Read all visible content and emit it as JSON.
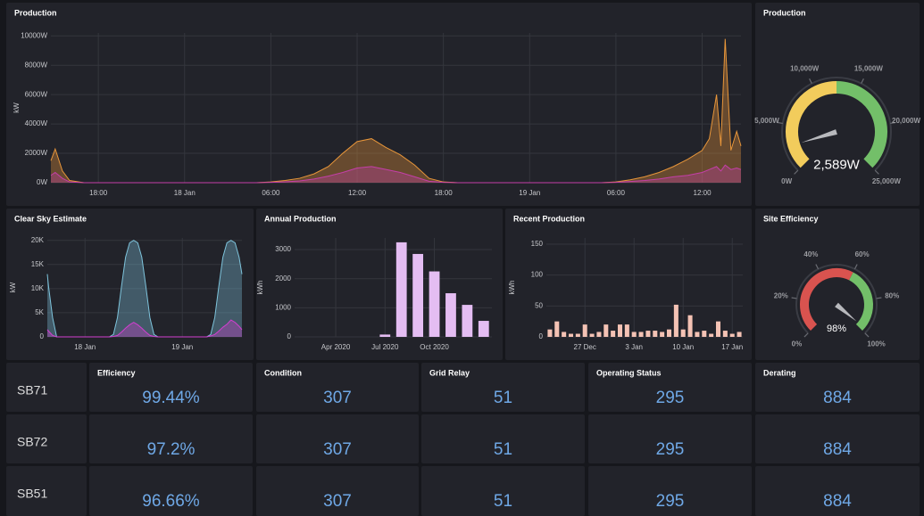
{
  "chart_data": [
    {
      "type": "line",
      "title": "Production",
      "ylabel": "kW",
      "x": [
        14.7,
        15,
        15.5,
        16,
        17,
        18,
        19,
        20,
        21,
        22,
        23,
        24,
        25,
        26,
        27,
        28,
        29,
        30,
        31,
        32,
        33,
        34,
        35,
        36,
        37,
        38,
        39,
        40,
        41,
        42,
        43,
        44,
        45,
        46,
        47,
        48,
        49,
        50,
        51,
        52,
        53,
        54,
        55,
        56,
        57,
        58,
        59,
        60,
        60.5,
        61,
        61.3,
        61.6,
        62,
        62.4,
        62.7
      ],
      "series": [
        {
          "color": "#e8963a",
          "values": [
            1500,
            2300,
            800,
            150,
            0,
            0,
            0,
            0,
            0,
            0,
            0,
            0,
            0,
            0,
            0,
            0,
            0,
            50,
            150,
            300,
            600,
            1100,
            2000,
            2800,
            3000,
            2400,
            1900,
            1200,
            300,
            50,
            0,
            0,
            0,
            0,
            0,
            0,
            0,
            0,
            0,
            0,
            0,
            50,
            200,
            400,
            700,
            1100,
            1600,
            2200,
            3000,
            6000,
            2500,
            9800,
            2200,
            3500,
            2500
          ]
        },
        {
          "color": "#c43fa8",
          "values": [
            500,
            700,
            300,
            50,
            0,
            0,
            0,
            0,
            0,
            0,
            0,
            0,
            0,
            0,
            0,
            0,
            0,
            20,
            60,
            120,
            250,
            450,
            700,
            1000,
            1100,
            900,
            700,
            400,
            100,
            20,
            0,
            0,
            0,
            0,
            0,
            0,
            0,
            0,
            0,
            0,
            0,
            20,
            80,
            150,
            250,
            400,
            500,
            700,
            900,
            1100,
            800,
            1200,
            900,
            1000,
            900
          ]
        }
      ],
      "xlim": [
        14.7,
        62.7
      ],
      "xticks": [
        {
          "value": 18,
          "label": "18:00"
        },
        {
          "value": 24,
          "label": "18 Jan"
        },
        {
          "value": 30,
          "label": "06:00"
        },
        {
          "value": 36,
          "label": "12:00"
        },
        {
          "value": 42,
          "label": "18:00"
        },
        {
          "value": 48,
          "label": "19 Jan"
        },
        {
          "value": 54,
          "label": "06:00"
        },
        {
          "value": 60,
          "label": "12:00"
        }
      ],
      "ylim": [
        0,
        10200
      ],
      "yticks": [
        {
          "value": 0,
          "label": "0W"
        },
        {
          "value": 2000,
          "label": "2000W"
        },
        {
          "value": 4000,
          "label": "4000W"
        },
        {
          "value": 6000,
          "label": "6000W"
        },
        {
          "value": 8000,
          "label": "8000W"
        },
        {
          "value": 10000,
          "label": "10000W"
        }
      ],
      "grid": true
    },
    {
      "type": "gauge",
      "title": "Production",
      "value": 2589,
      "value_label": "2,589W",
      "range": [
        0,
        25000
      ],
      "ticks": [
        {
          "value": 0,
          "label": "0W"
        },
        {
          "value": 5000,
          "label": "5,000W"
        },
        {
          "value": 10000,
          "label": "10,000W"
        },
        {
          "value": 15000,
          "label": "15,000W"
        },
        {
          "value": 20000,
          "label": "20,000W"
        },
        {
          "value": 25000,
          "label": "25,000W"
        }
      ],
      "thresholds": [
        {
          "value": 0,
          "color": "#f2cc5c"
        },
        {
          "value": 12500,
          "color": "#73bf69"
        }
      ]
    },
    {
      "type": "line",
      "title": "Clear Sky Estimate",
      "ylabel": "kW",
      "x": [
        14.7,
        15,
        16,
        17,
        30,
        31,
        32,
        33,
        34,
        35,
        36,
        37,
        38,
        39,
        40,
        41,
        42,
        54,
        55,
        56,
        57,
        58,
        59,
        60,
        61,
        62,
        62.7
      ],
      "series": [
        {
          "color": "#7ec4dc",
          "values": [
            13000,
            10500,
            4000,
            0,
            0,
            500,
            4000,
            10500,
            16500,
            19500,
            20000,
            19500,
            16500,
            10500,
            4000,
            500,
            0,
            0,
            500,
            4000,
            10500,
            16500,
            19500,
            20000,
            19500,
            16500,
            13000
          ]
        },
        {
          "color": "#d23fd0",
          "values": [
            1500,
            1200,
            300,
            0,
            0,
            100,
            300,
            1000,
            1800,
            2500,
            3000,
            2500,
            1800,
            1000,
            300,
            100,
            0,
            0,
            200,
            500,
            1200,
            2000,
            2600,
            3500,
            3000,
            2200,
            1500
          ]
        }
      ],
      "xlim": [
        14.7,
        62.7
      ],
      "xticks": [
        {
          "value": 24,
          "label": "18 Jan"
        },
        {
          "value": 48,
          "label": "19 Jan"
        }
      ],
      "ylim": [
        0,
        20500
      ],
      "yticks": [
        0,
        {
          "value": 5000,
          "label": "5K"
        },
        {
          "value": 10000,
          "label": "10K"
        },
        {
          "value": 15000,
          "label": "15K"
        },
        {
          "value": 20000,
          "label": "20K"
        }
      ],
      "grid": true
    },
    {
      "type": "bar",
      "title": "Annual Production",
      "ylabel": "kWh",
      "color": "#e4bdf2",
      "categories": [
        null,
        null,
        "Apr 2020",
        null,
        null,
        "Jul 2020",
        null,
        null,
        "Oct 2020",
        null,
        null,
        null
      ],
      "values": [
        null,
        null,
        null,
        null,
        null,
        80,
        3250,
        2850,
        2250,
        1500,
        1100,
        550
      ],
      "ylim": [
        0,
        3400
      ],
      "yticks": [
        0,
        1000,
        2000,
        3000
      ],
      "grid": true
    },
    {
      "type": "bar",
      "title": "Recent Production",
      "ylabel": "kWh",
      "color": "#f4c2b4",
      "categories": [
        null,
        null,
        null,
        null,
        null,
        "27 Dec",
        null,
        null,
        null,
        null,
        null,
        null,
        "3 Jan",
        null,
        null,
        null,
        null,
        null,
        null,
        "10 Jan",
        null,
        null,
        null,
        null,
        null,
        null,
        "17 Jan",
        null
      ],
      "values": [
        12,
        25,
        8,
        5,
        5,
        20,
        5,
        8,
        20,
        10,
        20,
        20,
        8,
        8,
        10,
        10,
        8,
        12,
        52,
        12,
        35,
        8,
        10,
        5,
        25,
        10,
        5,
        8
      ],
      "ylim": [
        0,
        160
      ],
      "yticks": [
        0,
        50,
        100,
        150
      ],
      "grid": true
    },
    {
      "type": "gauge",
      "title": "Site Efficiency",
      "value": 98,
      "value_label": "98%",
      "range": [
        0,
        100
      ],
      "ticks": [
        {
          "value": 0,
          "label": "0%"
        },
        {
          "value": 20,
          "label": "20%"
        },
        {
          "value": 40,
          "label": "40%"
        },
        {
          "value": 60,
          "label": "60%"
        },
        {
          "value": 80,
          "label": "80%"
        },
        {
          "value": 100,
          "label": "100%"
        }
      ],
      "thresholds": [
        {
          "value": 0,
          "color": "#d9534f"
        },
        {
          "value": 60,
          "color": "#73bf69"
        }
      ]
    }
  ],
  "table": {
    "columns": [
      "Efficiency",
      "Condition",
      "Grid Relay",
      "Operating Status",
      "Derating"
    ],
    "rows": [
      {
        "name": "SB71",
        "cells": [
          "99.44%",
          307,
          51,
          295,
          884
        ]
      },
      {
        "name": "SB72",
        "cells": [
          "97.2%",
          307,
          51,
          295,
          884
        ]
      },
      {
        "name": "SB51",
        "cells": [
          "96.66%",
          307,
          51,
          295,
          884
        ]
      }
    ]
  }
}
